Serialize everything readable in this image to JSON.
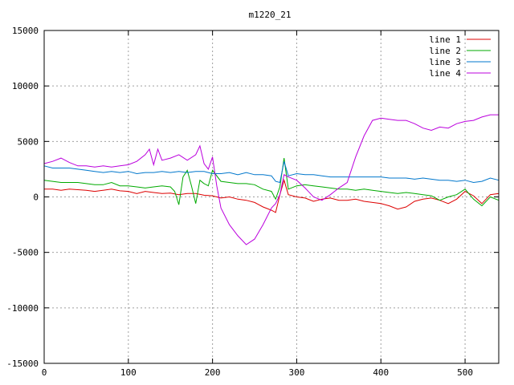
{
  "chart_data": {
    "type": "line",
    "title": "m1220_21",
    "xlabel": "",
    "ylabel": "",
    "xlim": [
      0,
      540
    ],
    "ylim": [
      -15000,
      15000
    ],
    "xticks": [
      0,
      100,
      200,
      300,
      400,
      500
    ],
    "yticks": [
      -15000,
      -10000,
      -5000,
      0,
      5000,
      10000,
      15000
    ],
    "grid": true,
    "legend_position": "top-right",
    "series": [
      {
        "name": "line 1",
        "color": "#dd0000",
        "points": [
          [
            0,
            700
          ],
          [
            10,
            700
          ],
          [
            20,
            600
          ],
          [
            30,
            700
          ],
          [
            40,
            650
          ],
          [
            50,
            600
          ],
          [
            60,
            500
          ],
          [
            70,
            600
          ],
          [
            80,
            700
          ],
          [
            90,
            550
          ],
          [
            100,
            500
          ],
          [
            110,
            300
          ],
          [
            120,
            500
          ],
          [
            130,
            400
          ],
          [
            140,
            300
          ],
          [
            150,
            350
          ],
          [
            160,
            200
          ],
          [
            170,
            300
          ],
          [
            180,
            300
          ],
          [
            190,
            150
          ],
          [
            200,
            100
          ],
          [
            210,
            -100
          ],
          [
            220,
            0
          ],
          [
            230,
            -200
          ],
          [
            240,
            -300
          ],
          [
            250,
            -500
          ],
          [
            260,
            -900
          ],
          [
            270,
            -1200
          ],
          [
            275,
            -1400
          ],
          [
            280,
            200
          ],
          [
            285,
            1500
          ],
          [
            290,
            200
          ],
          [
            300,
            0
          ],
          [
            310,
            -100
          ],
          [
            320,
            -400
          ],
          [
            330,
            -200
          ],
          [
            340,
            -100
          ],
          [
            350,
            -300
          ],
          [
            360,
            -300
          ],
          [
            370,
            -200
          ],
          [
            380,
            -400
          ],
          [
            390,
            -500
          ],
          [
            400,
            -600
          ],
          [
            410,
            -800
          ],
          [
            420,
            -1100
          ],
          [
            430,
            -900
          ],
          [
            440,
            -400
          ],
          [
            450,
            -200
          ],
          [
            460,
            -100
          ],
          [
            470,
            -300
          ],
          [
            480,
            -600
          ],
          [
            490,
            -200
          ],
          [
            500,
            500
          ],
          [
            510,
            100
          ],
          [
            520,
            -600
          ],
          [
            530,
            200
          ],
          [
            540,
            300
          ]
        ]
      },
      {
        "name": "line 2",
        "color": "#00aa00",
        "points": [
          [
            0,
            1500
          ],
          [
            10,
            1400
          ],
          [
            20,
            1300
          ],
          [
            30,
            1300
          ],
          [
            40,
            1300
          ],
          [
            50,
            1200
          ],
          [
            60,
            1100
          ],
          [
            70,
            1100
          ],
          [
            80,
            1300
          ],
          [
            90,
            1000
          ],
          [
            100,
            1000
          ],
          [
            110,
            900
          ],
          [
            120,
            800
          ],
          [
            130,
            900
          ],
          [
            140,
            1000
          ],
          [
            150,
            900
          ],
          [
            155,
            500
          ],
          [
            160,
            -700
          ],
          [
            165,
            1800
          ],
          [
            170,
            2400
          ],
          [
            175,
            1000
          ],
          [
            180,
            -600
          ],
          [
            185,
            1500
          ],
          [
            190,
            1200
          ],
          [
            195,
            1000
          ],
          [
            200,
            2400
          ],
          [
            210,
            1400
          ],
          [
            220,
            1300
          ],
          [
            230,
            1200
          ],
          [
            240,
            1200
          ],
          [
            250,
            1100
          ],
          [
            260,
            700
          ],
          [
            270,
            500
          ],
          [
            275,
            -200
          ],
          [
            280,
            900
          ],
          [
            285,
            3500
          ],
          [
            290,
            700
          ],
          [
            300,
            1000
          ],
          [
            310,
            1100
          ],
          [
            320,
            1000
          ],
          [
            330,
            900
          ],
          [
            340,
            800
          ],
          [
            350,
            700
          ],
          [
            360,
            700
          ],
          [
            370,
            600
          ],
          [
            380,
            700
          ],
          [
            390,
            600
          ],
          [
            400,
            500
          ],
          [
            410,
            400
          ],
          [
            420,
            300
          ],
          [
            430,
            400
          ],
          [
            440,
            300
          ],
          [
            450,
            200
          ],
          [
            460,
            100
          ],
          [
            470,
            -300
          ],
          [
            480,
            0
          ],
          [
            490,
            200
          ],
          [
            500,
            700
          ],
          [
            510,
            -200
          ],
          [
            520,
            -800
          ],
          [
            530,
            0
          ],
          [
            540,
            -300
          ]
        ]
      },
      {
        "name": "line 3",
        "color": "#0077cc",
        "points": [
          [
            0,
            2800
          ],
          [
            10,
            2600
          ],
          [
            20,
            2600
          ],
          [
            30,
            2600
          ],
          [
            40,
            2500
          ],
          [
            50,
            2400
          ],
          [
            60,
            2300
          ],
          [
            70,
            2200
          ],
          [
            80,
            2300
          ],
          [
            90,
            2200
          ],
          [
            100,
            2300
          ],
          [
            110,
            2100
          ],
          [
            120,
            2200
          ],
          [
            130,
            2200
          ],
          [
            140,
            2300
          ],
          [
            150,
            2200
          ],
          [
            160,
            2300
          ],
          [
            170,
            2200
          ],
          [
            180,
            2300
          ],
          [
            190,
            2300
          ],
          [
            200,
            2100
          ],
          [
            210,
            2100
          ],
          [
            220,
            2200
          ],
          [
            230,
            2000
          ],
          [
            240,
            2200
          ],
          [
            250,
            2000
          ],
          [
            260,
            2000
          ],
          [
            270,
            1900
          ],
          [
            275,
            1400
          ],
          [
            280,
            1300
          ],
          [
            285,
            3200
          ],
          [
            290,
            1900
          ],
          [
            300,
            2100
          ],
          [
            310,
            2000
          ],
          [
            320,
            2000
          ],
          [
            330,
            1900
          ],
          [
            340,
            1800
          ],
          [
            350,
            1800
          ],
          [
            360,
            1800
          ],
          [
            370,
            1800
          ],
          [
            380,
            1800
          ],
          [
            390,
            1800
          ],
          [
            400,
            1800
          ],
          [
            410,
            1700
          ],
          [
            420,
            1700
          ],
          [
            430,
            1700
          ],
          [
            440,
            1600
          ],
          [
            450,
            1700
          ],
          [
            460,
            1600
          ],
          [
            470,
            1500
          ],
          [
            480,
            1500
          ],
          [
            490,
            1400
          ],
          [
            500,
            1500
          ],
          [
            510,
            1300
          ],
          [
            520,
            1400
          ],
          [
            530,
            1700
          ],
          [
            540,
            1500
          ]
        ]
      },
      {
        "name": "line 4",
        "color": "#bb00dd",
        "points": [
          [
            0,
            3000
          ],
          [
            10,
            3200
          ],
          [
            20,
            3500
          ],
          [
            30,
            3100
          ],
          [
            40,
            2800
          ],
          [
            50,
            2800
          ],
          [
            60,
            2700
          ],
          [
            70,
            2800
          ],
          [
            80,
            2700
          ],
          [
            90,
            2800
          ],
          [
            100,
            2900
          ],
          [
            110,
            3200
          ],
          [
            120,
            3800
          ],
          [
            125,
            4300
          ],
          [
            130,
            2900
          ],
          [
            135,
            4300
          ],
          [
            140,
            3300
          ],
          [
            150,
            3500
          ],
          [
            160,
            3800
          ],
          [
            170,
            3300
          ],
          [
            180,
            3800
          ],
          [
            185,
            4600
          ],
          [
            190,
            3000
          ],
          [
            195,
            2500
          ],
          [
            200,
            3600
          ],
          [
            205,
            1000
          ],
          [
            210,
            -1000
          ],
          [
            220,
            -2500
          ],
          [
            230,
            -3500
          ],
          [
            240,
            -4300
          ],
          [
            250,
            -3800
          ],
          [
            260,
            -2500
          ],
          [
            270,
            -1000
          ],
          [
            275,
            -600
          ],
          [
            280,
            200
          ],
          [
            285,
            2000
          ],
          [
            290,
            1800
          ],
          [
            300,
            1500
          ],
          [
            310,
            800
          ],
          [
            320,
            0
          ],
          [
            330,
            -300
          ],
          [
            340,
            200
          ],
          [
            350,
            800
          ],
          [
            360,
            1300
          ],
          [
            370,
            3600
          ],
          [
            380,
            5500
          ],
          [
            390,
            6900
          ],
          [
            400,
            7100
          ],
          [
            410,
            7000
          ],
          [
            420,
            6900
          ],
          [
            430,
            6900
          ],
          [
            440,
            6600
          ],
          [
            450,
            6200
          ],
          [
            460,
            6000
          ],
          [
            470,
            6300
          ],
          [
            480,
            6200
          ],
          [
            490,
            6600
          ],
          [
            500,
            6800
          ],
          [
            510,
            6900
          ],
          [
            520,
            7200
          ],
          [
            530,
            7400
          ],
          [
            540,
            7400
          ]
        ]
      }
    ]
  }
}
